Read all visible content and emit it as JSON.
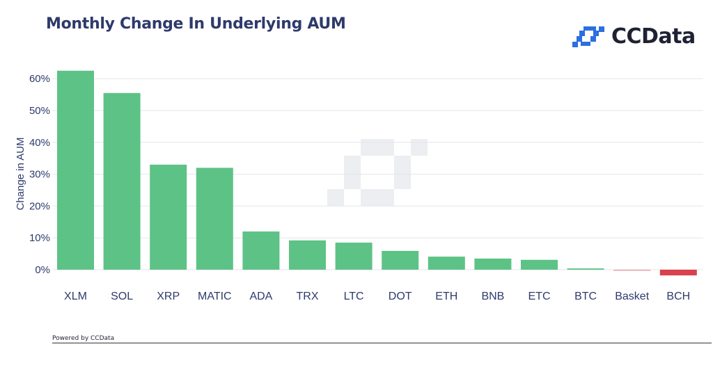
{
  "header": {
    "title": "Monthly Change In Underlying AUM"
  },
  "brand": {
    "name": "CCData",
    "icon": "ccdata-logo-icon",
    "color": "#2b6fe0"
  },
  "footer": {
    "powered_by": "Powered by CCData"
  },
  "colors": {
    "positive": "#5dc286",
    "negative": "#d9414d",
    "grid": "#e3e6ea",
    "text": "#2e3a6b"
  },
  "chart_data": {
    "type": "bar",
    "title": "Monthly Change In Underlying AUM",
    "xlabel": "",
    "ylabel": "Change in AUM",
    "categories": [
      "XLM",
      "SOL",
      "XRP",
      "MATIC",
      "ADA",
      "TRX",
      "LTC",
      "DOT",
      "ETH",
      "BNB",
      "ETC",
      "BTC",
      "Basket",
      "BCH"
    ],
    "values": [
      62.5,
      55.5,
      33.0,
      32.0,
      12.0,
      9.2,
      8.5,
      5.9,
      4.1,
      3.5,
      3.1,
      0.4,
      -0.3,
      -1.8
    ],
    "yticks": [
      "0%",
      "10%",
      "20%",
      "30%",
      "40%",
      "50%",
      "60%"
    ],
    "ylim": [
      0,
      60
    ],
    "grid": true,
    "legend": "none"
  }
}
